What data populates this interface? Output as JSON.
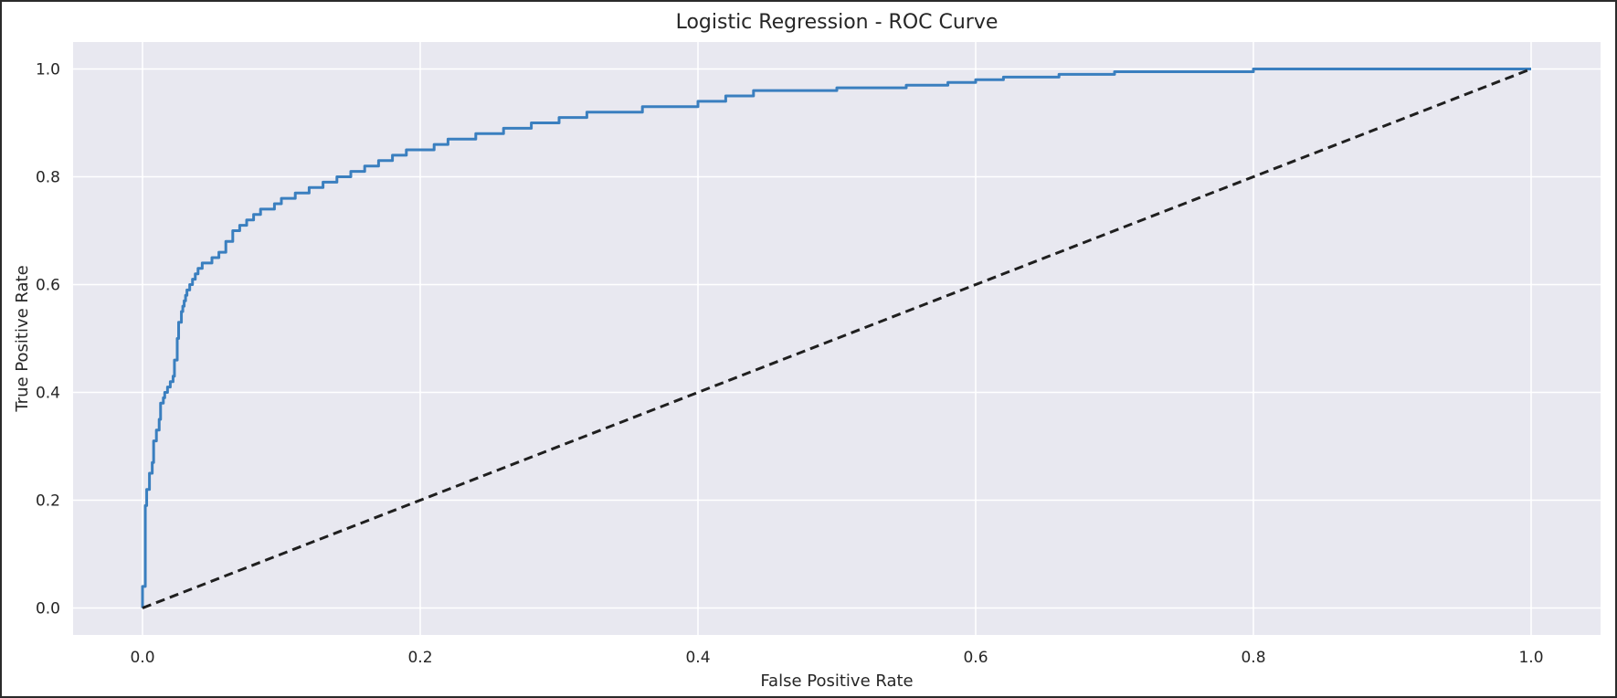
{
  "chart_data": {
    "type": "line",
    "title": "Logistic Regression - ROC Curve",
    "xlabel": "False Positive Rate",
    "ylabel": "True Positive Rate",
    "xlim": [
      -0.05,
      1.05
    ],
    "ylim": [
      -0.05,
      1.05
    ],
    "xticks": [
      "0.0",
      "0.2",
      "0.4",
      "0.6",
      "0.8",
      "1.0"
    ],
    "yticks": [
      "0.0",
      "0.2",
      "0.4",
      "0.6",
      "0.8",
      "1.0"
    ],
    "grid": true,
    "legend": "none",
    "series": [
      {
        "style": "solid",
        "color": "#3a7fbf",
        "x": [
          0.0,
          0.0,
          0.002,
          0.002,
          0.003,
          0.005,
          0.007,
          0.008,
          0.01,
          0.012,
          0.013,
          0.015,
          0.016,
          0.018,
          0.02,
          0.022,
          0.023,
          0.025,
          0.026,
          0.028,
          0.029,
          0.03,
          0.031,
          0.032,
          0.034,
          0.036,
          0.038,
          0.04,
          0.043,
          0.046,
          0.05,
          0.055,
          0.06,
          0.065,
          0.07,
          0.075,
          0.08,
          0.085,
          0.09,
          0.095,
          0.1,
          0.11,
          0.12,
          0.13,
          0.14,
          0.15,
          0.16,
          0.17,
          0.18,
          0.19,
          0.2,
          0.21,
          0.22,
          0.24,
          0.26,
          0.28,
          0.3,
          0.32,
          0.34,
          0.36,
          0.38,
          0.4,
          0.42,
          0.44,
          0.46,
          0.5,
          0.55,
          0.58,
          0.6,
          0.62,
          0.66,
          0.7,
          0.75,
          0.8,
          0.86,
          0.9,
          1.0
        ],
        "y": [
          0.0,
          0.04,
          0.04,
          0.19,
          0.22,
          0.25,
          0.27,
          0.31,
          0.33,
          0.35,
          0.38,
          0.39,
          0.4,
          0.41,
          0.42,
          0.43,
          0.46,
          0.5,
          0.53,
          0.55,
          0.56,
          0.57,
          0.58,
          0.59,
          0.6,
          0.61,
          0.62,
          0.63,
          0.64,
          0.64,
          0.65,
          0.66,
          0.68,
          0.7,
          0.71,
          0.72,
          0.73,
          0.74,
          0.74,
          0.75,
          0.76,
          0.77,
          0.78,
          0.79,
          0.8,
          0.81,
          0.82,
          0.83,
          0.84,
          0.85,
          0.85,
          0.86,
          0.87,
          0.88,
          0.89,
          0.9,
          0.91,
          0.92,
          0.92,
          0.93,
          0.93,
          0.94,
          0.95,
          0.96,
          0.96,
          0.965,
          0.97,
          0.975,
          0.98,
          0.985,
          0.99,
          0.995,
          0.995,
          1.0,
          1.0,
          1.0,
          1.0
        ]
      },
      {
        "style": "dashed",
        "color": "#1f1f1f",
        "x": [
          0.0,
          1.0
        ],
        "y": [
          0.0,
          1.0
        ]
      }
    ]
  }
}
